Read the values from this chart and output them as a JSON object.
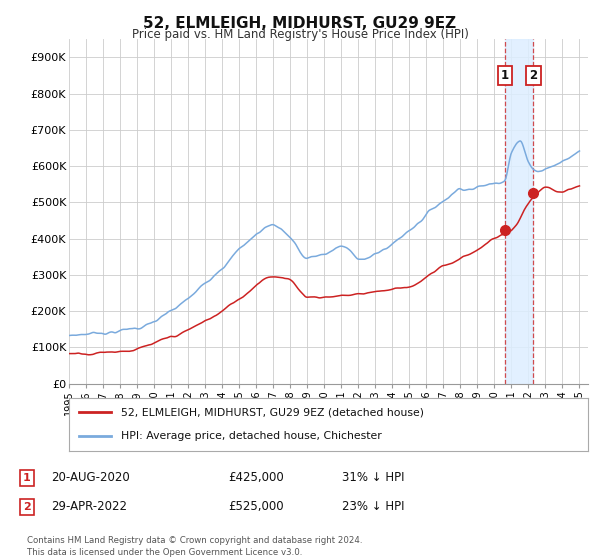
{
  "title": "52, ELMLEIGH, MIDHURST, GU29 9EZ",
  "subtitle": "Price paid vs. HM Land Registry's House Price Index (HPI)",
  "ylim": [
    0,
    950000
  ],
  "yticks": [
    0,
    100000,
    200000,
    300000,
    400000,
    500000,
    600000,
    700000,
    800000,
    900000
  ],
  "ytick_labels": [
    "£0",
    "£100K",
    "£200K",
    "£300K",
    "£400K",
    "£500K",
    "£600K",
    "£700K",
    "£800K",
    "£900K"
  ],
  "hpi_color": "#7aaadd",
  "price_color": "#cc2222",
  "shaded_color": "#ddeeff",
  "t1_year_f": 2020.625,
  "t1_price": 425000,
  "t2_year_f": 2022.29,
  "t2_price": 525000,
  "transaction1": {
    "date": "20-AUG-2020",
    "price": "£425,000",
    "pct": "31% ↓ HPI"
  },
  "transaction2": {
    "date": "29-APR-2022",
    "price": "£525,000",
    "pct": "23% ↓ HPI"
  },
  "legend_label1": "52, ELMLEIGH, MIDHURST, GU29 9EZ (detached house)",
  "legend_label2": "HPI: Average price, detached house, Chichester",
  "footer": "Contains HM Land Registry data © Crown copyright and database right 2024.\nThis data is licensed under the Open Government Licence v3.0.",
  "background_color": "#ffffff",
  "grid_color": "#cccccc",
  "xlim_left": 1995,
  "xlim_right": 2025.5
}
